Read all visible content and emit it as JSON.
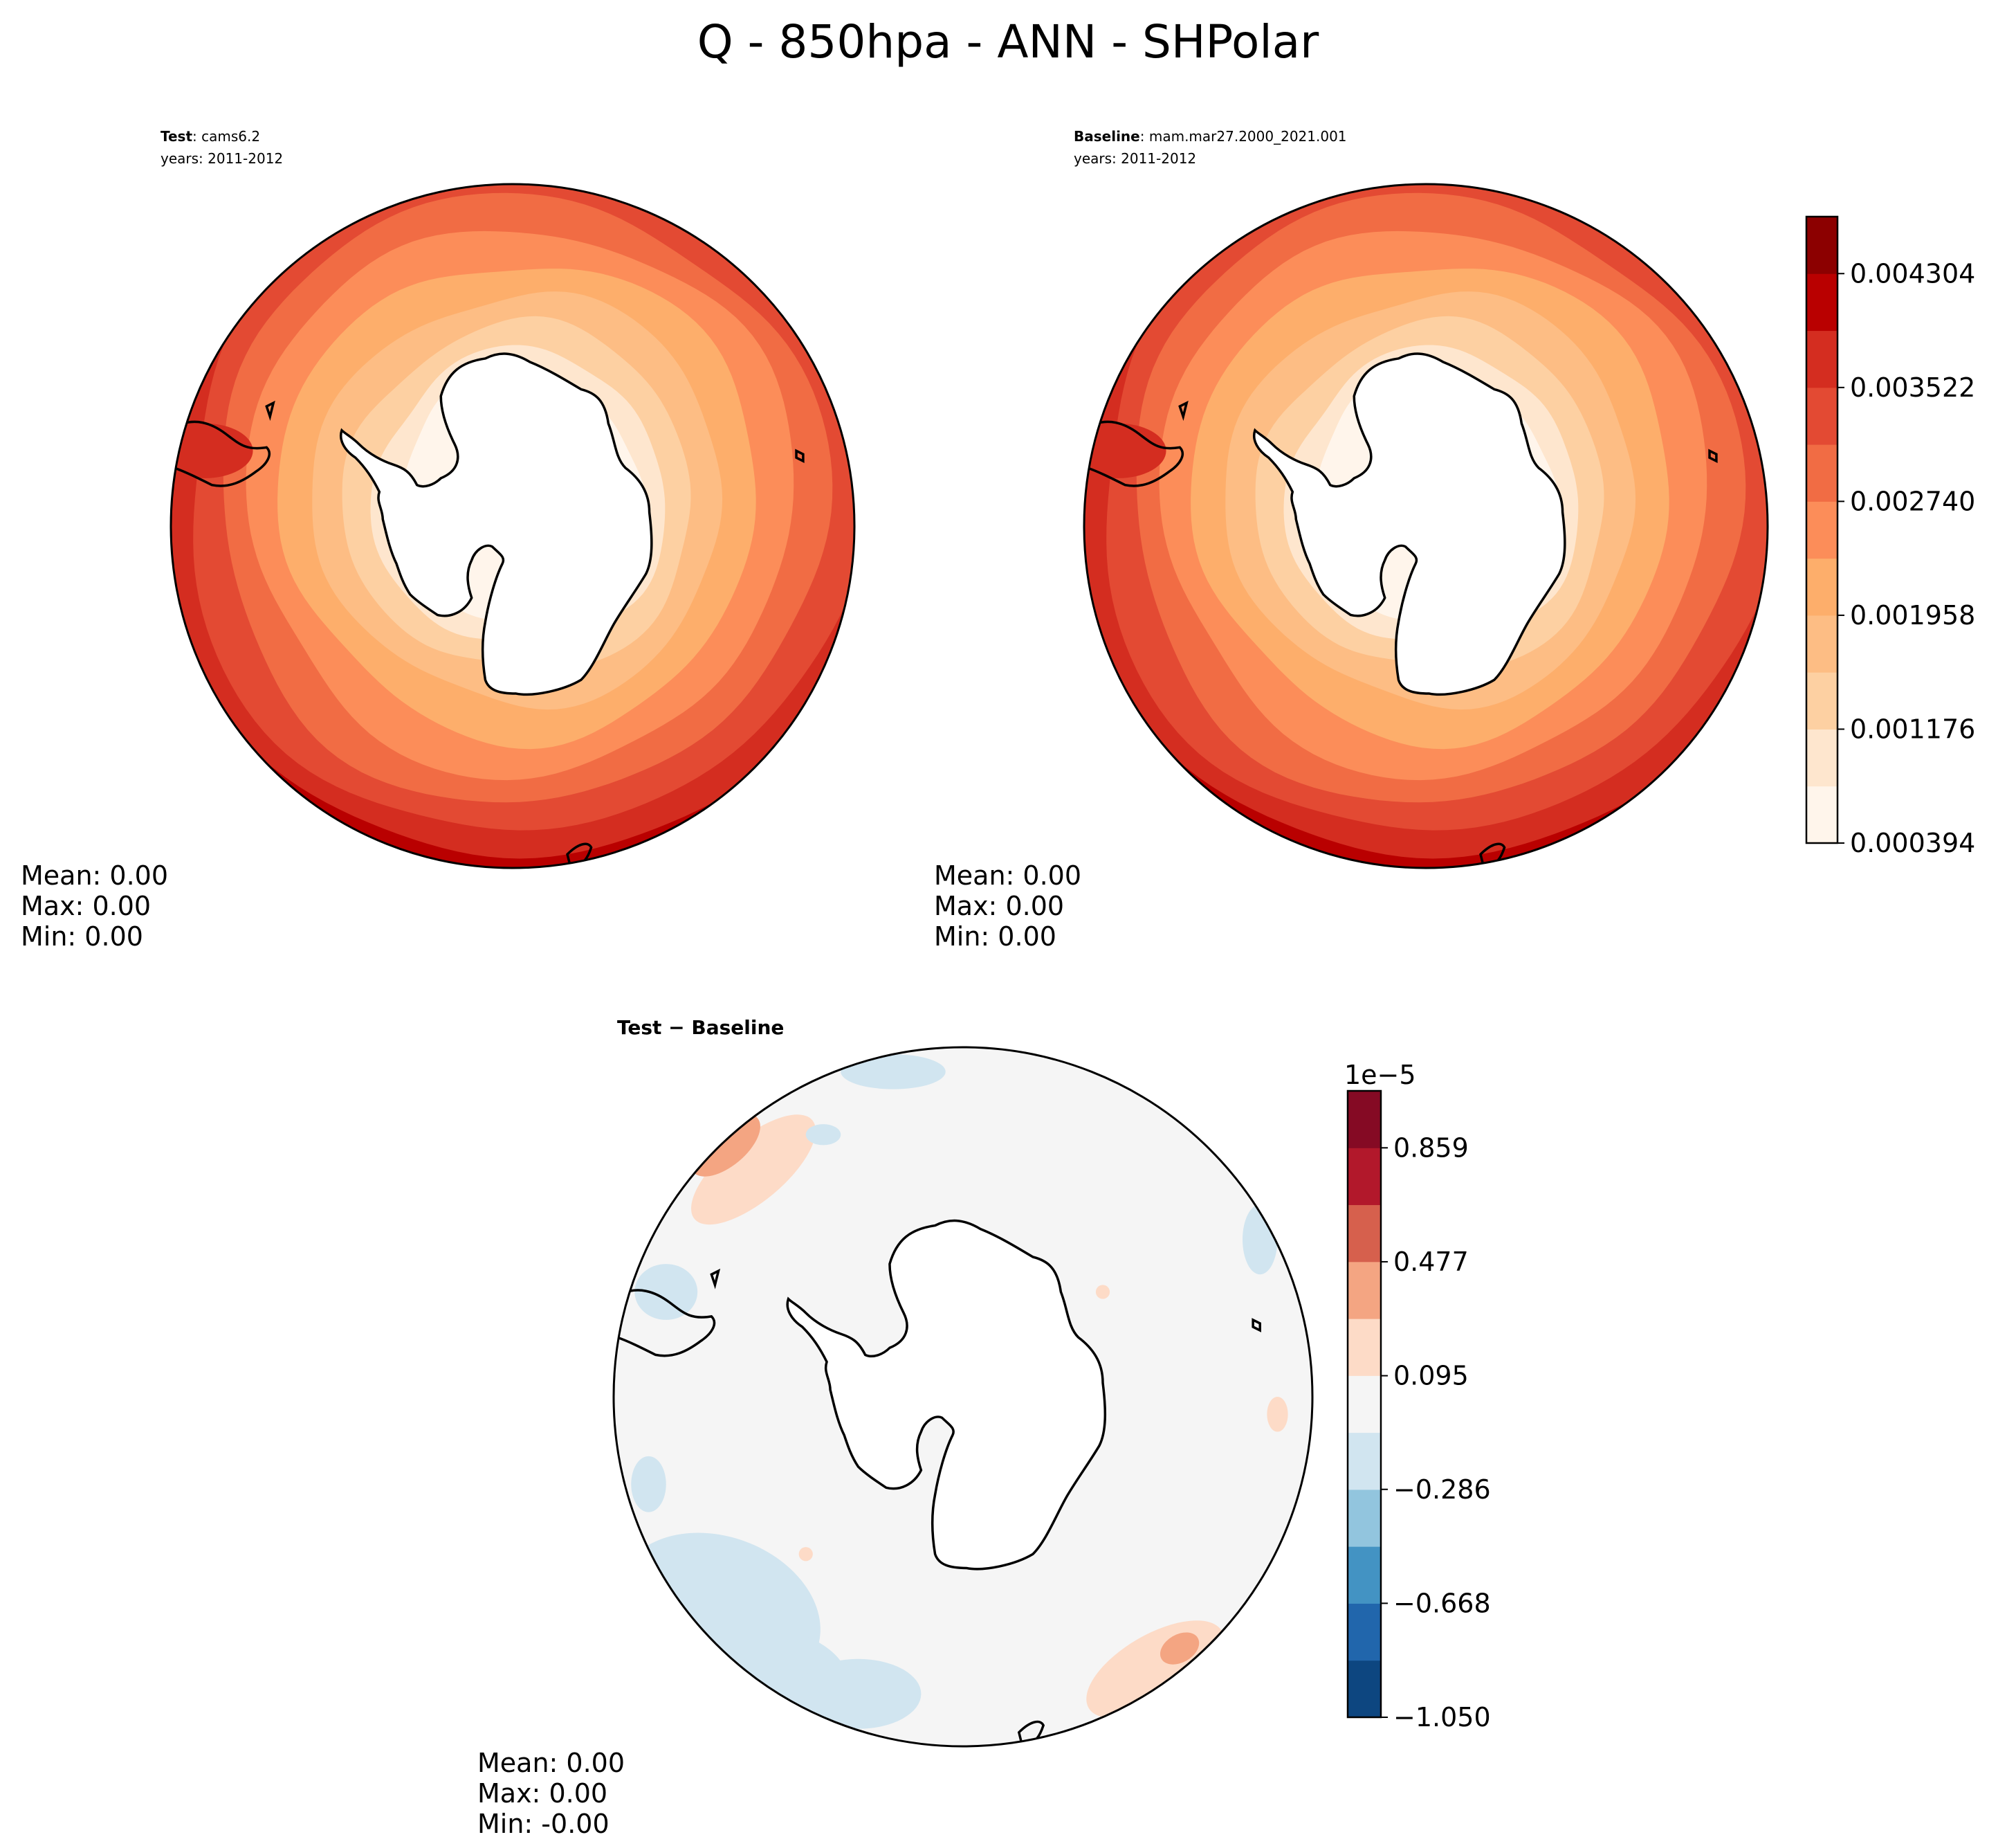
{
  "suptitle": "Q - 850hpa - ANN - SHPolar",
  "panels": {
    "test": {
      "label_bold": "Test",
      "label_sep": ": ",
      "label_value": "cams6.2",
      "years": "years: 2011-2012",
      "stats": [
        "Mean:  0.00",
        "Max:  0.00",
        "Min:  0.00"
      ]
    },
    "baseline": {
      "label_bold": "Baseline",
      "label_sep": ": ",
      "label_value": "mam.mar27.2000_2021.001",
      "years": "years: 2011-2012",
      "stats": [
        "Mean:  0.00",
        "Max:  0.00",
        "Min:  0.00"
      ]
    },
    "diff": {
      "title": "Test − Baseline",
      "stats": [
        "Mean:  0.00",
        "Max:  0.00",
        "Min: -0.00"
      ]
    }
  },
  "colors": {
    "orrd": [
      "#fff5eb",
      "#fee6ce",
      "#fdd0a2",
      "#fdbd84",
      "#fdae6b",
      "#fc8d59",
      "#f16c44",
      "#e34a33",
      "#d42d20",
      "#b90000",
      "#8c0000"
    ],
    "rdbu": [
      "#0d4680",
      "#2166ac",
      "#4393c3",
      "#92c5de",
      "#d1e5f0",
      "#f5f5f5",
      "#fddbc7",
      "#f4a582",
      "#d6604d",
      "#b2182b",
      "#850a24"
    ],
    "land": "#ffffff",
    "coast": "#000000"
  },
  "chart_data": [
    {
      "type": "heatmap",
      "name": "test",
      "projection": "south-polar-stereographic",
      "variable": "Q",
      "level": "850hpa",
      "season": "ANN",
      "levels": [
        0.000394,
        0.000785,
        0.001176,
        0.001567,
        0.001958,
        0.002349,
        0.00274,
        0.003131,
        0.003522,
        0.003913,
        0.004304,
        0.004695
      ],
      "field_rings": [
        1,
        2,
        3,
        4,
        5,
        6,
        7,
        8,
        9,
        10
      ]
    },
    {
      "type": "heatmap",
      "name": "baseline",
      "projection": "south-polar-stereographic",
      "variable": "Q",
      "level": "850hpa",
      "season": "ANN",
      "levels": [
        0.000394,
        0.000785,
        0.001176,
        0.001567,
        0.001958,
        0.002349,
        0.00274,
        0.003131,
        0.003522,
        0.003913,
        0.004304,
        0.004695
      ],
      "field_rings": [
        1,
        2,
        3,
        4,
        5,
        6,
        7,
        8,
        9,
        10
      ]
    },
    {
      "type": "heatmap",
      "name": "test-minus-baseline",
      "projection": "south-polar-stereographic",
      "scale_label": "1e−5",
      "levels": [
        -1.05,
        -0.859,
        -0.668,
        -0.477,
        -0.286,
        -0.095,
        0.095,
        0.286,
        0.477,
        0.668,
        0.859,
        1.05
      ]
    }
  ],
  "colorbars": {
    "main": {
      "ticks": [
        "0.000394",
        "0.001176",
        "0.001958",
        "0.002740",
        "0.003522",
        "0.004304"
      ],
      "tick_values": [
        0.000394,
        0.001176,
        0.001958,
        0.00274,
        0.003522,
        0.004304
      ],
      "vmin": 0.000394,
      "vmax": 0.004695
    },
    "diff": {
      "offset_label": "1e−5",
      "ticks": [
        "−1.050",
        "−0.668",
        "−0.286",
        "0.095",
        "0.477",
        "0.859"
      ],
      "tick_values": [
        -1.05,
        -0.668,
        -0.286,
        0.095,
        0.477,
        0.859
      ],
      "vmin": -1.05,
      "vmax": 1.05
    }
  }
}
